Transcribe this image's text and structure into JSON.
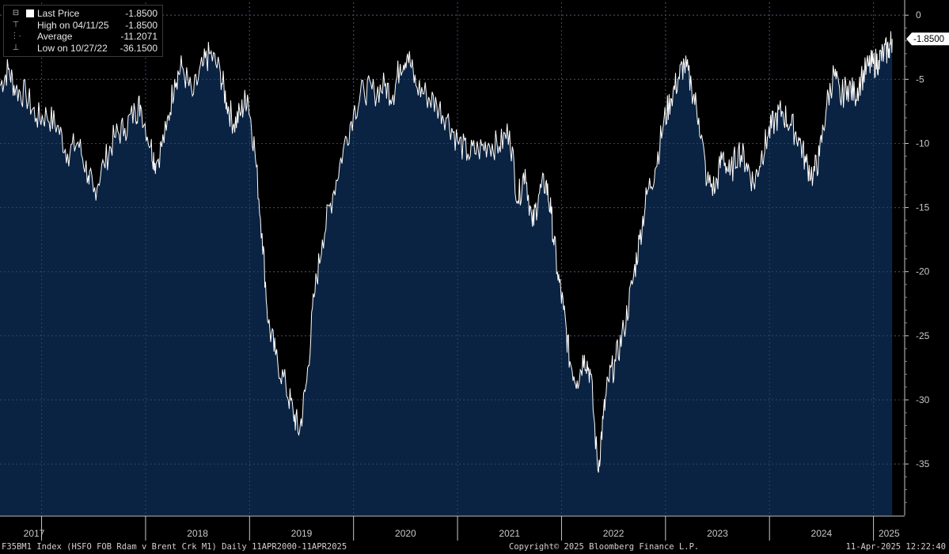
{
  "legend": {
    "items": [
      {
        "label": "Last Price",
        "value": "-1.8500"
      },
      {
        "label": "High on 04/11/25",
        "value": "-1.8500"
      },
      {
        "label": "Average",
        "value": "-11.2071"
      },
      {
        "label": "Low on 10/27/22",
        "value": "-36.1500"
      }
    ]
  },
  "footer": {
    "security": "F35BM1 Index (HSFO FOB Rdam v Brent Crk M1)  Daily 11APR2000-11APR2025",
    "copyright": "Copyright© 2025 Bloomberg Finance L.P.",
    "timestamp": "11-Apr-2025 12:22:40"
  },
  "colors": {
    "background": "#000000",
    "area_fill": "#0b2342",
    "line": "#ffffff",
    "grid": "#6a6a6a",
    "axis": "#c8c8c8"
  },
  "chart_data": {
    "type": "area",
    "title": "",
    "xlabel": "",
    "ylabel": "",
    "series": [
      {
        "name": "Last Price"
      }
    ],
    "x_tick_labels": [
      "2017",
      "2018",
      "2019",
      "2020",
      "2021",
      "2022",
      "2023",
      "2024",
      "2025"
    ],
    "x_tick_positions": [
      2017.0,
      2018.0,
      2019.0,
      2020.0,
      2021.0,
      2022.0,
      2023.0,
      2024.0,
      2025.0
    ],
    "y_ticks": [
      0,
      -5,
      -10,
      -15,
      -20,
      -25,
      -30,
      -35
    ],
    "ylim": [
      -39,
      1
    ],
    "xlim": [
      2016.6,
      2025.3
    ],
    "last_value_label": "-1.8500",
    "last_value": -1.85,
    "points": [
      [
        2016.6,
        -5.5
      ],
      [
        2016.68,
        -4.2
      ],
      [
        2016.75,
        -5.8
      ],
      [
        2016.85,
        -6.2
      ],
      [
        2016.95,
        -8.0
      ],
      [
        2017.05,
        -7.8
      ],
      [
        2017.15,
        -8.6
      ],
      [
        2017.25,
        -10.8
      ],
      [
        2017.35,
        -9.9
      ],
      [
        2017.45,
        -12.5
      ],
      [
        2017.5,
        -13.8
      ],
      [
        2017.6,
        -11.6
      ],
      [
        2017.7,
        -9.5
      ],
      [
        2017.8,
        -8.8
      ],
      [
        2017.9,
        -7.5
      ],
      [
        2017.95,
        -7.0
      ],
      [
        2018.05,
        -10.2
      ],
      [
        2018.1,
        -11.6
      ],
      [
        2018.2,
        -9.0
      ],
      [
        2018.28,
        -5.0
      ],
      [
        2018.35,
        -4.0
      ],
      [
        2018.45,
        -6.3
      ],
      [
        2018.55,
        -4.0
      ],
      [
        2018.62,
        -3.0
      ],
      [
        2018.72,
        -4.5
      ],
      [
        2018.78,
        -6.8
      ],
      [
        2018.85,
        -8.5
      ],
      [
        2018.92,
        -7.5
      ],
      [
        2018.98,
        -6.2
      ],
      [
        2019.05,
        -10.5
      ],
      [
        2019.12,
        -17.0
      ],
      [
        2019.18,
        -24.0
      ],
      [
        2019.25,
        -26.5
      ],
      [
        2019.35,
        -29.0
      ],
      [
        2019.42,
        -31.0
      ],
      [
        2019.48,
        -32.5
      ],
      [
        2019.55,
        -28.5
      ],
      [
        2019.62,
        -22.0
      ],
      [
        2019.7,
        -17.5
      ],
      [
        2019.8,
        -14.0
      ],
      [
        2019.9,
        -10.5
      ],
      [
        2020.0,
        -7.5
      ],
      [
        2020.1,
        -5.8
      ],
      [
        2020.2,
        -6.0
      ],
      [
        2020.3,
        -5.5
      ],
      [
        2020.38,
        -6.2
      ],
      [
        2020.45,
        -3.8
      ],
      [
        2020.52,
        -3.0
      ],
      [
        2020.6,
        -5.5
      ],
      [
        2020.7,
        -6.2
      ],
      [
        2020.8,
        -7.0
      ],
      [
        2020.9,
        -8.0
      ],
      [
        2021.0,
        -9.8
      ],
      [
        2021.1,
        -10.8
      ],
      [
        2021.2,
        -10.5
      ],
      [
        2021.3,
        -10.0
      ],
      [
        2021.4,
        -10.2
      ],
      [
        2021.5,
        -9.0
      ],
      [
        2021.58,
        -14.5
      ],
      [
        2021.65,
        -12.0
      ],
      [
        2021.72,
        -16.5
      ],
      [
        2021.78,
        -14.0
      ],
      [
        2021.85,
        -13.0
      ],
      [
        2021.9,
        -15.5
      ],
      [
        2021.96,
        -20.0
      ],
      [
        2022.02,
        -23.0
      ],
      [
        2022.08,
        -27.0
      ],
      [
        2022.15,
        -28.5
      ],
      [
        2022.22,
        -26.5
      ],
      [
        2022.28,
        -28.0
      ],
      [
        2022.35,
        -35.5
      ],
      [
        2022.4,
        -31.5
      ],
      [
        2022.45,
        -28.5
      ],
      [
        2022.52,
        -27.0
      ],
      [
        2022.6,
        -24.5
      ],
      [
        2022.68,
        -21.0
      ],
      [
        2022.75,
        -17.5
      ],
      [
        2022.82,
        -14.0
      ],
      [
        2022.9,
        -12.0
      ],
      [
        2022.98,
        -8.5
      ],
      [
        2023.05,
        -6.5
      ],
      [
        2023.12,
        -5.0
      ],
      [
        2023.18,
        -3.8
      ],
      [
        2023.25,
        -5.5
      ],
      [
        2023.32,
        -8.0
      ],
      [
        2023.4,
        -13.0
      ],
      [
        2023.48,
        -13.5
      ],
      [
        2023.55,
        -10.8
      ],
      [
        2023.62,
        -12.5
      ],
      [
        2023.7,
        -10.5
      ],
      [
        2023.78,
        -11.5
      ],
      [
        2023.85,
        -13.2
      ],
      [
        2023.92,
        -11.0
      ],
      [
        2023.98,
        -9.5
      ],
      [
        2024.05,
        -8.2
      ],
      [
        2024.12,
        -7.5
      ],
      [
        2024.2,
        -8.5
      ],
      [
        2024.28,
        -9.5
      ],
      [
        2024.35,
        -11.5
      ],
      [
        2024.42,
        -12.5
      ],
      [
        2024.48,
        -11.0
      ],
      [
        2024.55,
        -7.0
      ],
      [
        2024.62,
        -4.5
      ],
      [
        2024.68,
        -6.5
      ],
      [
        2024.75,
        -5.5
      ],
      [
        2024.82,
        -6.2
      ],
      [
        2024.88,
        -5.0
      ],
      [
        2024.95,
        -4.0
      ],
      [
        2025.0,
        -3.8
      ],
      [
        2025.05,
        -3.5
      ],
      [
        2025.1,
        -3.0
      ],
      [
        2025.15,
        -2.6
      ],
      [
        2025.18,
        -1.85
      ]
    ]
  }
}
